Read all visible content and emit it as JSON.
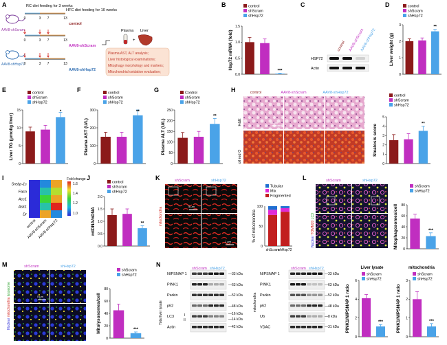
{
  "colors": {
    "control": "#8b1a1a",
    "shScram": "#c02ec0",
    "shHsp72": "#4aa3e8",
    "he_pink": "#c46aa8",
    "oil_red": "#b83a2a",
    "mito_red": "#d4261f",
    "tubular": "#1f6fd1",
    "mix": "#e02ad6",
    "fragmented": "#c21f1f"
  },
  "panel_A": {
    "label": "A",
    "rc_note": "RC diet feeding for 3 weeks",
    "hfc_note": "HFC diet feeding for 10 weeks",
    "ticks": [
      "0",
      "3",
      "7",
      "13"
    ],
    "group_aav_shscram": "AAV8-shScram",
    "group_aav_shhsp72": "AAV8-shHsp72",
    "end_control": "control",
    "end_shscram": "AAV8-shScram",
    "end_shhsp72": "AAV8-shHsp72",
    "plasma": "Plasma",
    "liver": "Liver",
    "plus": "+",
    "analyses": [
      "Plasma AST, ALT analysis;",
      "Liver histological examinations;",
      "Mitophagy morphology and markers;",
      "Mitochondrial oxidation evaluation;"
    ]
  },
  "panel_B": {
    "label": "B",
    "ylabel": "Hsp72 mRNA (fold)",
    "legend": [
      "control",
      "shScram",
      "shHsp72"
    ],
    "sig": "***",
    "chart_data": {
      "type": "bar",
      "categories": [
        "control",
        "shScram",
        "shHsp72"
      ],
      "values": [
        1.0,
        0.97,
        0.02
      ],
      "errors": [
        0.15,
        0.13,
        0.01
      ],
      "yticks": [
        "0.0",
        "0.5",
        "1.0",
        "1.5"
      ],
      "ylim": [
        0,
        1.5
      ]
    }
  },
  "panel_C": {
    "label": "C",
    "lanes": [
      "control",
      "AAV8-shScram",
      "AAV8-shHsp72"
    ],
    "rows": [
      "HSP72",
      "Actin"
    ]
  },
  "panel_D": {
    "label": "D",
    "ylabel": "Liver weight (g)",
    "legend": [
      "control",
      "shScram",
      "shHsp72"
    ],
    "sig": "**",
    "chart_data": {
      "type": "bar",
      "categories": [
        "control",
        "shScram",
        "shHsp72"
      ],
      "values": [
        2.0,
        2.05,
        2.6
      ],
      "errors": [
        0.15,
        0.15,
        0.12
      ],
      "yticks": [
        "0",
        "1",
        "2",
        "3"
      ],
      "ylim": [
        0,
        3
      ]
    }
  },
  "panel_E": {
    "label": "E",
    "ylabel": "Liver TG (μmol/g liver)",
    "legend": [
      "control",
      "shScram",
      "shHsp72"
    ],
    "sig": "*",
    "chart_data": {
      "type": "bar",
      "categories": [
        "control",
        "shScram",
        "shHsp72"
      ],
      "values": [
        9,
        9.5,
        13
      ],
      "errors": [
        1.2,
        1.2,
        1.3
      ],
      "yticks": [
        "0",
        "5",
        "10",
        "15"
      ],
      "ylim": [
        0,
        15
      ]
    }
  },
  "panel_F": {
    "label": "F",
    "ylabel": "Plasma AST (U/L)",
    "legend": [
      "control",
      "shScram",
      "shHsp72"
    ],
    "sig": "**",
    "chart_data": {
      "type": "bar",
      "categories": [
        "control",
        "shScram",
        "shHsp72"
      ],
      "values": [
        150,
        150,
        270
      ],
      "errors": [
        25,
        25,
        30
      ],
      "yticks": [
        "0",
        "100",
        "200",
        "300"
      ],
      "ylim": [
        0,
        300
      ]
    }
  },
  "panel_G": {
    "label": "G",
    "ylabel": "Plasma ALT (U/L)",
    "legend": [
      "Control",
      "shScram",
      "shHsp72"
    ],
    "sig": "**",
    "chart_data": {
      "type": "bar",
      "categories": [
        "Control",
        "shScram",
        "shHsp72"
      ],
      "values": [
        120,
        125,
        185
      ],
      "errors": [
        25,
        25,
        25
      ],
      "yticks": [
        "0",
        "50",
        "100",
        "150",
        "200",
        "250"
      ],
      "ylim": [
        0,
        250
      ]
    }
  },
  "panel_H": {
    "label": "H",
    "columns": [
      "control",
      "AAV8-shScram",
      "AAV8-shHsp72"
    ],
    "rows": [
      "H&E",
      "oil red O"
    ],
    "scale": "50 μm",
    "ylabel": "Steatosis score",
    "legend": [
      "control",
      "shScram",
      "shHsp72"
    ],
    "sig": "**",
    "chart_data": {
      "type": "bar",
      "categories": [
        "control",
        "shScram",
        "shHsp72"
      ],
      "values": [
        2.5,
        2.6,
        3.5
      ],
      "errors": [
        0.6,
        0.6,
        0.5
      ],
      "yticks": [
        "0",
        "1",
        "2",
        "3",
        "4",
        "5"
      ],
      "ylim": [
        0,
        5
      ]
    }
  },
  "panel_I": {
    "label": "I",
    "genes": [
      "Srebp-1c",
      "Fasn",
      "Acc1",
      "Ask1",
      "Dr"
    ],
    "cols": [
      "control",
      "AAV8-shScram",
      "AAV8-shHsp72"
    ],
    "colorbar_title": "Fold change",
    "colorbar_ticks": [
      "1.6",
      "1.4",
      "1.2",
      "1.0"
    ],
    "chart_data": {
      "type": "heatmap",
      "values": [
        [
          1.0,
          1.1,
          1.5
        ],
        [
          1.0,
          1.2,
          1.4
        ],
        [
          1.0,
          1.3,
          1.5
        ],
        [
          1.0,
          1.2,
          1.6
        ],
        [
          1.0,
          1.5,
          1.1
        ]
      ]
    }
  },
  "panel_J": {
    "label": "J",
    "ylabel": "mtDNA/nDNA",
    "legend": [
      "control",
      "shScram",
      "shHsp72"
    ],
    "sig": "**",
    "chart_data": {
      "type": "bar",
      "categories": [
        "control",
        "shScram",
        "shHsp72"
      ],
      "values": [
        1.25,
        1.3,
        0.72
      ],
      "errors": [
        0.25,
        0.2,
        0.1
      ],
      "yticks": [
        "0.0",
        "0.5",
        "1.0",
        "1.5",
        "2.0"
      ],
      "ylim": [
        0,
        2.0
      ]
    }
  },
  "panel_K": {
    "label": "K",
    "groups": [
      "shScram",
      "shHsp72"
    ],
    "side_label": "mitochondria",
    "scale_big": "5 μm",
    "scale_small": "1 μm",
    "ylabel": "% of mitochondria",
    "legend": [
      "Tubular",
      "Mix",
      "Fragmented"
    ],
    "chart_data": {
      "type": "bar",
      "categories": [
        "shScram",
        "shHsp72"
      ],
      "series": [
        {
          "name": "Fragmented",
          "values": [
            78,
            86
          ]
        },
        {
          "name": "Mix",
          "values": [
            13,
            9
          ]
        },
        {
          "name": "Tubular",
          "values": [
            9,
            5
          ]
        }
      ],
      "stacked": true,
      "yticks": [
        "0",
        "50",
        "100"
      ],
      "ylim": [
        0,
        100
      ]
    }
  },
  "panel_L": {
    "label": "L",
    "groups": [
      "shScram",
      "shHsp72"
    ],
    "side_label_parts": [
      "Nuclear",
      "TOMM20",
      "LC3"
    ],
    "ylabel": "Mitophagosomes/cell",
    "legend": [
      "shScram",
      "shHsp72"
    ],
    "sig": "***",
    "chart_data": {
      "type": "bar",
      "categories": [
        "shScram",
        "shHsp72"
      ],
      "values": [
        55,
        23
      ],
      "errors": [
        8,
        6
      ],
      "yticks": [
        "0",
        "20",
        "40",
        "60",
        "80"
      ],
      "ylim": [
        0,
        80
      ]
    }
  },
  "panel_M": {
    "label": "M",
    "groups": [
      "shScram",
      "shHsp72"
    ],
    "side_label_parts": [
      "Nuclear",
      "mitochondria",
      "lysosome"
    ],
    "scale": "5 μm",
    "ylabel": "Mitolysosomes/cell",
    "legend": [
      "shScram",
      "shHsp72"
    ],
    "sig": "***",
    "chart_data": {
      "type": "bar",
      "categories": [
        "shScram",
        "shHsp72"
      ],
      "values": [
        45,
        8
      ],
      "errors": [
        10,
        2
      ],
      "yticks": [
        "0",
        "20",
        "40",
        "60",
        "80"
      ],
      "ylim": [
        0,
        80
      ]
    }
  },
  "panel_N": {
    "label": "N",
    "groups": [
      "shScram",
      "shHsp72"
    ],
    "left_rows": [
      "NIPSNAP 1",
      "PINK1",
      "Parkin",
      "p62",
      "LC3",
      "Actin"
    ],
    "lc3_bands": [
      "I",
      "II"
    ],
    "left_kda": [
      "33 kDa",
      "63 kDa",
      "52 kDa",
      "48 kDa",
      "16 kDa",
      "14 kDa",
      "42 kDa"
    ],
    "left_side": "Total liver lysate",
    "right_rows": [
      "NIPSNAP 1",
      "PINK1",
      "Parkin",
      "p62",
      "Ub",
      "VDAC"
    ],
    "right_kda": [
      "33 kDa",
      "63 kDa",
      "52 kDa",
      "48 kDa",
      "8 kDa",
      "31 kDa"
    ],
    "right_side": "mitochondria",
    "chart1": {
      "title": "Liver lysate",
      "ylabel": "PINK1/NIPSNAP 1 ratio",
      "legend": [
        "shScram",
        "shHsp72"
      ],
      "sig": "***",
      "chart_data": {
        "type": "bar",
        "categories": [
          "shScram",
          "shHsp72"
        ],
        "values": [
          4.1,
          1.1
        ],
        "errors": [
          0.4,
          0.2
        ],
        "yticks": [
          "0",
          "2",
          "4",
          "6"
        ],
        "ylim": [
          0,
          6
        ]
      }
    },
    "chart2": {
      "title": "mitochondria",
      "ylabel": "PINK1/NIPSNAP 1 ratio",
      "legend": [
        "shScram",
        "shHsp72"
      ],
      "sig": "***",
      "chart_data": {
        "type": "bar",
        "categories": [
          "shScram",
          "shHsp72"
        ],
        "values": [
          2.0,
          0.55
        ],
        "errors": [
          0.4,
          0.15
        ],
        "yticks": [
          "0",
          "1",
          "2",
          "3"
        ],
        "ylim": [
          0,
          3
        ]
      }
    }
  }
}
